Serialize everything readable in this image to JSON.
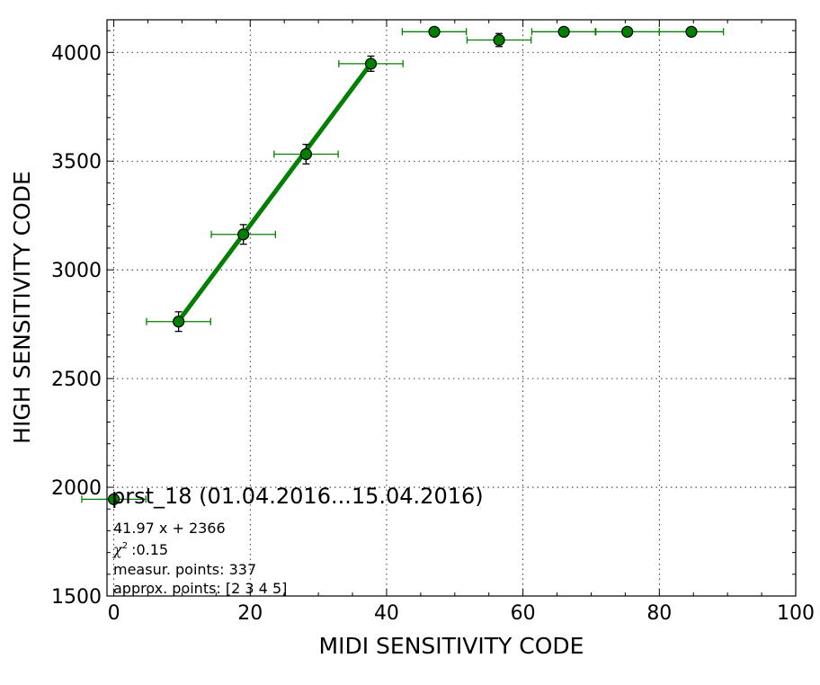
{
  "chart_data": {
    "type": "scatter",
    "xlabel": "MIDI SENSITIVITY CODE",
    "ylabel": "HIGH SENSITIVITY CODE",
    "xlim": [
      -1,
      100
    ],
    "ylim": [
      1500,
      4150
    ],
    "xticks": [
      0,
      20,
      40,
      60,
      80,
      100
    ],
    "yticks": [
      1500,
      2000,
      2500,
      3000,
      3500,
      4000
    ],
    "xtick_labels": [
      "0",
      "20",
      "40",
      "60",
      "80",
      "100"
    ],
    "ytick_labels": [
      "1500",
      "2000",
      "2500",
      "3000",
      "3500",
      "4000"
    ],
    "grid": true,
    "colors": {
      "points": "#007f00",
      "fit_line": "#007f00",
      "marker_edge": "#000000"
    },
    "points": [
      {
        "x": 0.0,
        "y": 1945,
        "xerr": 4.7,
        "yerr": 0
      },
      {
        "x": 9.5,
        "y": 2762,
        "xerr": 4.7,
        "yerr": 45
      },
      {
        "x": 19.0,
        "y": 3163,
        "xerr": 4.7,
        "yerr": 45
      },
      {
        "x": 28.2,
        "y": 3532,
        "xerr": 4.7,
        "yerr": 45
      },
      {
        "x": 37.7,
        "y": 3948,
        "xerr": 4.7,
        "yerr": 35
      },
      {
        "x": 47.0,
        "y": 4095,
        "xerr": 4.7,
        "yerr": 0
      },
      {
        "x": 56.5,
        "y": 4057,
        "xerr": 4.7,
        "yerr": 30
      },
      {
        "x": 66.0,
        "y": 4095,
        "xerr": 4.7,
        "yerr": 0
      },
      {
        "x": 75.3,
        "y": 4095,
        "xerr": 4.7,
        "yerr": 0
      },
      {
        "x": 84.7,
        "y": 4095,
        "xerr": 4.7,
        "yerr": 0
      }
    ],
    "fit": {
      "slope": 41.97,
      "intercept": 2366,
      "x_range": [
        9.5,
        37.7
      ]
    },
    "annotation": {
      "title": "prst_18 (01.04.2016...15.04.2016)",
      "equation": "41.97 x + 2366",
      "chi2_value": ":0.15",
      "measured": "measur. points: 337",
      "approx": "approx. points: [2 3 4 5]"
    }
  }
}
